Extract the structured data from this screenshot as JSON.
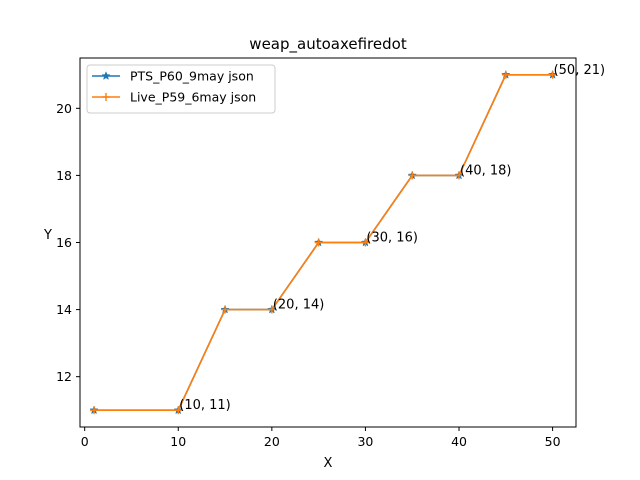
{
  "chart_data": {
    "type": "line",
    "title": "weap_autoaxefiredot",
    "xlabel": "X",
    "ylabel": "Y",
    "xlim": [
      -0.5,
      52.5
    ],
    "ylim": [
      10.5,
      21.5
    ],
    "xticks": [
      0,
      10,
      20,
      30,
      40,
      50
    ],
    "yticks": [
      12,
      14,
      16,
      18,
      20
    ],
    "grid": false,
    "legend_position": "upper-left",
    "x": [
      1,
      10,
      15,
      20,
      25,
      30,
      35,
      40,
      45,
      50
    ],
    "series": [
      {
        "name": "PTS_P60_9may json",
        "color": "#1f77b4",
        "marker": "star",
        "values": [
          11,
          11,
          14,
          14,
          16,
          16,
          18,
          18,
          21,
          21
        ]
      },
      {
        "name": "Live_P59_6may json",
        "color": "#ff7f0e",
        "marker": "plus",
        "values": [
          11,
          11,
          14,
          14,
          16,
          16,
          18,
          18,
          21,
          21
        ]
      }
    ],
    "annotations": [
      {
        "x": 10,
        "y": 11,
        "text": "(10, 11)"
      },
      {
        "x": 20,
        "y": 14,
        "text": "(20, 14)"
      },
      {
        "x": 30,
        "y": 16,
        "text": "(30, 16)"
      },
      {
        "x": 40,
        "y": 18,
        "text": "(40, 18)"
      },
      {
        "x": 50,
        "y": 21,
        "text": "(50, 21)"
      }
    ]
  }
}
